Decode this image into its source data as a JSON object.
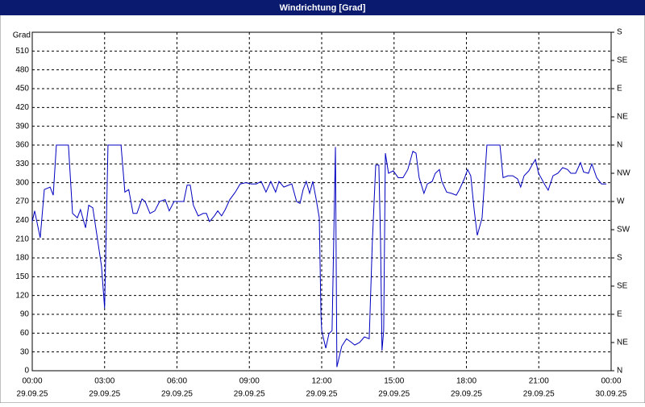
{
  "chart_data": {
    "type": "line",
    "title": "Windrichtung [Grad]",
    "y_label": "Grad",
    "xlim": [
      0,
      24
    ],
    "xticks": [
      {
        "value": 0,
        "label": [
          "00:00",
          "29.09.25"
        ]
      },
      {
        "value": 3,
        "label": [
          "03:00",
          "29.09.25"
        ]
      },
      {
        "value": 6,
        "label": [
          "06:00",
          "29.09.25"
        ]
      },
      {
        "value": 9,
        "label": [
          "09:00",
          "29.09.25"
        ]
      },
      {
        "value": 12,
        "label": [
          "12:00",
          "29.09.25"
        ]
      },
      {
        "value": 15,
        "label": [
          "15:00",
          "29.09.25"
        ]
      },
      {
        "value": 18,
        "label": [
          "18:00",
          "29.09.25"
        ]
      },
      {
        "value": 21,
        "label": [
          "21:00",
          "29.09.25"
        ]
      },
      {
        "value": 24,
        "label": [
          "00:00",
          "30.09.25"
        ]
      }
    ],
    "ylim": [
      0,
      540
    ],
    "yticks": [
      0,
      30,
      60,
      90,
      120,
      150,
      180,
      210,
      240,
      270,
      300,
      330,
      360,
      390,
      420,
      450,
      480,
      510
    ],
    "y2lim": [
      0,
      540
    ],
    "y2ticks": [
      {
        "value": 0,
        "label": "N"
      },
      {
        "value": 45,
        "label": "NE"
      },
      {
        "value": 90,
        "label": "E"
      },
      {
        "value": 135,
        "label": "SE"
      },
      {
        "value": 180,
        "label": "S"
      },
      {
        "value": 225,
        "label": "SW"
      },
      {
        "value": 270,
        "label": "W"
      },
      {
        "value": 315,
        "label": "NW"
      },
      {
        "value": 360,
        "label": "N"
      },
      {
        "value": 405,
        "label": "NE"
      },
      {
        "value": 450,
        "label": "E"
      },
      {
        "value": 495,
        "label": "SE"
      },
      {
        "value": 540,
        "label": "S"
      }
    ],
    "grid": true,
    "series": [
      {
        "color": "#0000c0",
        "x": [
          0,
          0.1,
          0.33,
          0.5,
          0.74,
          0.87,
          1.0,
          1.5,
          1.67,
          1.87,
          2.0,
          2.21,
          2.34,
          2.51,
          2.67,
          2.87,
          3.0,
          3.14,
          3.68,
          3.84,
          4.0,
          4.18,
          4.34,
          4.55,
          4.68,
          4.88,
          5.08,
          5.28,
          5.51,
          5.68,
          5.88,
          6.08,
          6.28,
          6.42,
          6.55,
          6.68,
          6.88,
          7.09,
          7.22,
          7.35,
          7.55,
          7.69,
          7.85,
          8.0,
          8.19,
          8.42,
          8.62,
          8.86,
          9.09,
          9.29,
          9.49,
          9.69,
          9.89,
          10.09,
          10.23,
          10.43,
          10.63,
          10.76,
          10.96,
          11.1,
          11.23,
          11.36,
          11.5,
          11.63,
          11.76,
          11.9,
          11.97,
          12.0,
          12.17,
          12.3,
          12.43,
          12.57,
          12.63,
          12.83,
          13.03,
          13.24,
          13.37,
          13.57,
          13.77,
          13.97,
          14.1,
          14.24,
          14.37,
          14.44,
          14.5,
          14.57,
          14.64,
          14.77,
          14.97,
          15.17,
          15.37,
          15.57,
          15.78,
          15.91,
          16.04,
          16.24,
          16.38,
          16.58,
          16.71,
          16.88,
          16.98,
          17.18,
          17.38,
          17.58,
          17.71,
          17.91,
          18.05,
          18.18,
          18.32,
          18.45,
          18.65,
          18.85,
          19.39,
          19.52,
          19.72,
          19.92,
          20.12,
          20.25,
          20.39,
          20.59,
          20.72,
          20.86,
          20.99,
          21.12,
          21.26,
          21.39,
          21.59,
          21.79,
          21.99,
          22.19,
          22.33,
          22.53,
          22.73,
          22.86,
          23.06,
          23.2,
          23.4,
          23.6,
          23.8
        ],
        "values": [
          238,
          255,
          212,
          289,
          293,
          280,
          360,
          360,
          251,
          244,
          257,
          228,
          264,
          260,
          219,
          167,
          100,
          360,
          360,
          285,
          289,
          251,
          251,
          274,
          270,
          251,
          255,
          270,
          273,
          255,
          270,
          270,
          270,
          296,
          296,
          264,
          247,
          251,
          251,
          238,
          247,
          255,
          247,
          257,
          273,
          285,
          298,
          300,
          298,
          298,
          302,
          285,
          302,
          285,
          302,
          293,
          296,
          298,
          270,
          267,
          289,
          302,
          283,
          302,
          276,
          244,
          90,
          64,
          36,
          59,
          64,
          357,
          6,
          39,
          51,
          45,
          41,
          45,
          54,
          51,
          206,
          328,
          328,
          206,
          32,
          64,
          347,
          315,
          319,
          308,
          308,
          321,
          350,
          347,
          308,
          283,
          298,
          302,
          315,
          321,
          302,
          285,
          283,
          280,
          289,
          306,
          321,
          311,
          257,
          216,
          244,
          360,
          360,
          308,
          311,
          311,
          306,
          293,
          311,
          319,
          328,
          337,
          315,
          306,
          296,
          288,
          311,
          315,
          324,
          321,
          315,
          315,
          332,
          317,
          315,
          330,
          308,
          298,
          298
        ]
      }
    ]
  }
}
